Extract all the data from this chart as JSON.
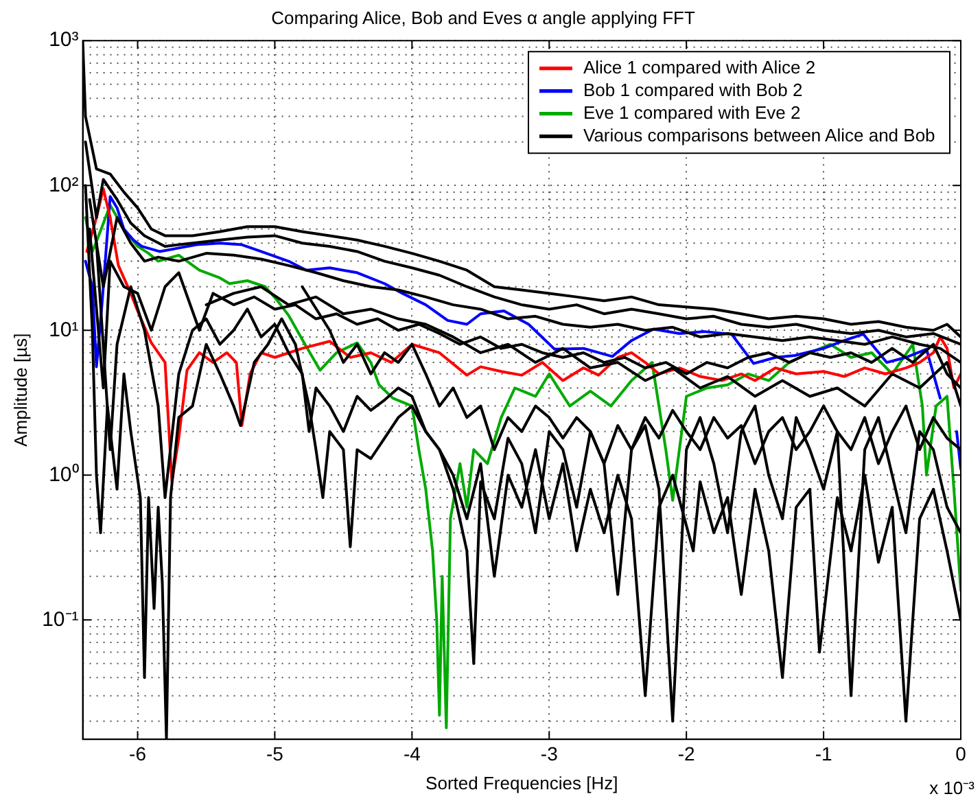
{
  "chart_data": {
    "type": "line",
    "title": "Comparing Alice, Bob and Eves α angle applying FFT",
    "xlabel": "Sorted Frequencies [Hz]",
    "ylabel": "Amplitude [µs]",
    "annotations": [
      "x 10⁻³"
    ],
    "xlim": [
      -6.4,
      0
    ],
    "xticks": [
      -6,
      -5,
      -4,
      -3,
      -2,
      -1,
      0
    ],
    "ylim": [
      0.015,
      1000
    ],
    "yticks": [
      {
        "value": 0.1,
        "label": "10⁻¹"
      },
      {
        "value": 1,
        "label": "10⁰"
      },
      {
        "value": 10,
        "label": "10¹"
      },
      {
        "value": 100,
        "label": "10²"
      },
      {
        "value": 1000,
        "label": "10³"
      }
    ],
    "log": true,
    "grid": true,
    "legend": "top right",
    "marker": "none",
    "line_style": "solid",
    "series": [
      {
        "color": "#000000",
        "x": [
          -6.38,
          -6.33,
          -6.3,
          -6.27,
          -6.22,
          -6.15,
          -6.1,
          -6.05,
          -5.98,
          -5.95,
          -5.92,
          -5.88,
          -5.85,
          -5.82,
          -5.79,
          -5.76,
          -5.7,
          -5.6,
          -5.5,
          -5.4,
          -5.3,
          -5.25,
          -5.15,
          -5.05,
          -4.95,
          -4.85,
          -4.75,
          -4.7,
          -4.65,
          -4.6,
          -4.5,
          -4.45,
          -4.4,
          -4.3,
          -4.2,
          -4.1,
          -4.0,
          -3.9,
          -3.8,
          -3.7,
          -3.6,
          -3.5,
          -3.4,
          -3.3,
          -3.2,
          -3.1,
          -3.0,
          -2.9,
          -2.8,
          -2.7,
          -2.6,
          -2.5,
          -2.4,
          -2.3,
          -2.2,
          -2.1,
          -1.95,
          -1.9,
          -1.8,
          -1.7,
          -1.6,
          -1.5,
          -1.4,
          -1.3,
          -1.2,
          -1.1,
          -1.03,
          -0.9,
          -0.8,
          -0.7,
          -0.6,
          -0.5,
          -0.4,
          -0.3,
          -0.2,
          -0.1,
          0
        ],
        "values": [
          100,
          10,
          1,
          0.4,
          3,
          0.8,
          5,
          2,
          0.7,
          0.04,
          0.7,
          0.12,
          0.6,
          0.18,
          0.015,
          0.7,
          2.5,
          3,
          8,
          5,
          3,
          2.2,
          6,
          8,
          12,
          8,
          3,
          1.5,
          0.7,
          2,
          1.5,
          0.32,
          1.5,
          1.3,
          1.8,
          2.5,
          3,
          2,
          1.5,
          1,
          0.5,
          1.2,
          0.2,
          1,
          0.6,
          1.5,
          0.5,
          1.2,
          0.3,
          0.8,
          0.4,
          1.0,
          0.5,
          0.03,
          0.6,
          1,
          0.3,
          0.9,
          0.4,
          0.7,
          0.15,
          0.8,
          0.3,
          0.04,
          0.6,
          0.8,
          0.06,
          0.7,
          0.3,
          1,
          0.25,
          0.6,
          0.02,
          0.5,
          0.8,
          0.3,
          0.1
        ]
      },
      {
        "color": "#000000",
        "x": [
          -6.3,
          -6.2,
          -6.15,
          -6.05,
          -5.95,
          -5.85,
          -5.8,
          -5.7,
          -5.6,
          -5.5,
          -5.4,
          -5.3,
          -5.2,
          -5.1,
          -5.0,
          -4.9,
          -4.8,
          -4.75,
          -4.7,
          -4.6,
          -4.5,
          -4.4,
          -4.3,
          -4.2,
          -4.1,
          -4.0,
          -3.9,
          -3.8,
          -3.7,
          -3.6,
          -3.55,
          -3.5,
          -3.4,
          -3.3,
          -3.2,
          -3.1,
          -3.0,
          -2.9,
          -2.8,
          -2.7,
          -2.6,
          -2.5,
          -2.4,
          -2.3,
          -2.2,
          -2.1,
          -2.0,
          -1.9,
          -1.8,
          -1.7,
          -1.6,
          -1.5,
          -1.4,
          -1.3,
          -1.2,
          -1.1,
          -1.0,
          -0.9,
          -0.8,
          -0.7,
          -0.6,
          -0.5,
          -0.4,
          -0.3,
          -0.2,
          -0.1,
          0
        ],
        "values": [
          40,
          1.5,
          8,
          20,
          10,
          3,
          0.7,
          5,
          10,
          12,
          8,
          10,
          14,
          9,
          11,
          7,
          5,
          2,
          4,
          3,
          2,
          3.5,
          2.8,
          3.3,
          4,
          3.5,
          2,
          1.5,
          0.8,
          0.3,
          0.05,
          0.9,
          0.5,
          1.8,
          1.2,
          0.4,
          2,
          1.5,
          0.6,
          2,
          1.2,
          0.15,
          1.5,
          2.2,
          0.8,
          0.02,
          1.5,
          2.5,
          1.2,
          0.4,
          2,
          3,
          1,
          0.5,
          2.5,
          1.5,
          0.8,
          2,
          0.03,
          1.5,
          2.5,
          1,
          0.4,
          2,
          1.5,
          0.6,
          0.4
        ]
      },
      {
        "color": "#000000",
        "x": [
          -4.8,
          -4.6,
          -4.5,
          -4.4,
          -4.3,
          -4.2,
          -4.1,
          -4.0,
          -3.9,
          -3.8,
          -3.7,
          -3.6,
          -3.5,
          -3.4,
          -3.3,
          -3.2,
          -3.1,
          -3.0,
          -2.9,
          -2.8,
          -2.7,
          -2.6,
          -2.5,
          -2.4,
          -2.3,
          -2.2,
          -2.1,
          -2.0,
          -1.9,
          -1.8,
          -1.7,
          -1.6,
          -1.5,
          -1.4,
          -1.3,
          -1.2,
          -1.1,
          -1.0,
          -0.9,
          -0.8,
          -0.7,
          -0.6,
          -0.5,
          -0.4,
          -0.3,
          -0.2,
          -0.1,
          0
        ],
        "values": [
          20,
          10,
          6,
          8,
          5,
          7,
          6,
          8,
          5,
          3,
          4,
          2.5,
          3,
          1.5,
          2.5,
          2,
          3,
          2.5,
          1.8,
          2.5,
          2,
          1.2,
          2.2,
          1.5,
          2.5,
          1.8,
          2.8,
          2,
          1.5,
          2.5,
          1.8,
          2.2,
          1.2,
          2,
          2.5,
          1.5,
          2,
          3,
          2,
          1.5,
          2.5,
          1.2,
          2,
          3,
          1.5,
          2.5,
          1.8,
          1.5
        ]
      },
      {
        "color": "#000000",
        "x": [
          -5.5,
          -5.3,
          -5.1,
          -4.9,
          -4.7,
          -4.5,
          -4.3,
          -4.1,
          -3.9,
          -3.7,
          -3.5,
          -3.3,
          -3.1,
          -2.9,
          -2.7,
          -2.5,
          -2.3,
          -2.1,
          -1.9,
          -1.7,
          -1.5,
          -1.3,
          -1.1,
          -0.9,
          -0.7,
          -0.5,
          -0.3,
          -0.1,
          0
        ],
        "values": [
          15,
          18,
          20,
          15,
          17,
          13,
          14,
          12,
          11,
          9,
          7,
          8,
          6,
          7.5,
          5.5,
          6,
          4.5,
          5.5,
          4,
          4.8,
          3.5,
          4.5,
          3.5,
          4,
          3,
          5,
          4,
          6,
          3
        ]
      },
      {
        "color": "#000000",
        "x": [
          -6.35,
          -6.25,
          -6.2,
          -6.1,
          -6.0,
          -5.9,
          -5.8,
          -5.7,
          -5.55,
          -5.45,
          -5.3,
          -5.15,
          -5.0,
          -4.85,
          -4.7,
          -4.55,
          -4.4,
          -4.25,
          -4.1,
          -3.95,
          -3.8,
          -3.65,
          -3.5,
          -3.35,
          -3.2,
          -3.05,
          -2.9,
          -2.75,
          -2.6,
          -2.45,
          -2.3,
          -2.15,
          -2.0,
          -1.85,
          -1.7,
          -1.55,
          -1.4,
          -1.25,
          -1.1,
          -0.95,
          -0.8,
          -0.65,
          -0.5,
          -0.35,
          -0.2,
          -0.1,
          0
        ],
        "values": [
          50,
          4,
          30,
          20,
          18,
          10,
          20,
          25,
          10,
          18,
          15,
          17,
          14,
          15,
          12,
          13,
          11,
          12,
          10,
          11,
          9.5,
          8,
          9,
          7.5,
          8,
          7,
          6.5,
          7,
          6,
          6.5,
          5.5,
          6,
          5,
          6,
          5.5,
          6.5,
          7,
          6,
          7,
          6.5,
          7,
          6,
          7.5,
          6,
          8,
          5,
          4
        ]
      },
      {
        "color": "#000000",
        "x": [
          -6.35,
          -6.25,
          -6.15,
          -6.05,
          -5.95,
          -5.85,
          -5.7,
          -5.5,
          -5.3,
          -5.1,
          -4.9,
          -4.7,
          -4.5,
          -4.3,
          -4.1,
          -3.9,
          -3.7,
          -3.5,
          -3.3,
          -3.1,
          -2.9,
          -2.7,
          -2.5,
          -2.3,
          -2.1,
          -1.9,
          -1.7,
          -1.5,
          -1.3,
          -1.1,
          -0.9,
          -0.7,
          -0.5,
          -0.3,
          -0.15,
          0
        ],
        "values": [
          80,
          20,
          60,
          40,
          30,
          32,
          30,
          34,
          33,
          31,
          28,
          25,
          22,
          20,
          19,
          17,
          15,
          14,
          12,
          12.5,
          11,
          10.5,
          11,
          10,
          10.5,
          9,
          9.5,
          9,
          8.5,
          9,
          8.5,
          8,
          9,
          8,
          7.5,
          6
        ]
      },
      {
        "color": "#000000",
        "x": [
          -6.38,
          -6.3,
          -6.25,
          -6.15,
          -6.05,
          -5.95,
          -5.8,
          -5.6,
          -5.4,
          -5.2,
          -5.0,
          -4.8,
          -4.6,
          -4.4,
          -4.2,
          -4.0,
          -3.8,
          -3.6,
          -3.4,
          -3.2,
          -3.0,
          -2.8,
          -2.6,
          -2.4,
          -2.2,
          -2.0,
          -1.8,
          -1.6,
          -1.4,
          -1.2,
          -1.0,
          -0.8,
          -0.6,
          -0.4,
          -0.2,
          0
        ],
        "values": [
          200,
          60,
          110,
          80,
          55,
          45,
          38,
          40,
          42,
          44,
          45,
          40,
          38,
          35,
          30,
          27,
          24,
          20,
          17,
          15,
          14,
          15,
          13,
          14,
          13,
          12,
          12.5,
          11,
          10.5,
          11,
          10,
          9.5,
          10,
          9,
          9.5,
          8
        ]
      },
      {
        "name": "Alice 1 compared with Alice 2",
        "color": "#ff0000",
        "x": [
          -6.37,
          -6.3,
          -6.25,
          -6.2,
          -6.14,
          -6.05,
          -6.0,
          -5.9,
          -5.8,
          -5.75,
          -5.7,
          -5.64,
          -5.55,
          -5.45,
          -5.35,
          -5.28,
          -5.24,
          -5.18,
          -5.1,
          -5.0,
          -4.8,
          -4.6,
          -4.45,
          -4.3,
          -4.15,
          -4.0,
          -3.8,
          -3.6,
          -3.5,
          -3.35,
          -3.2,
          -3.05,
          -2.9,
          -2.75,
          -2.64,
          -2.5,
          -2.4,
          -2.3,
          -2.2,
          -2.05,
          -1.9,
          -1.74,
          -1.6,
          -1.5,
          -1.35,
          -1.2,
          -1.0,
          -0.85,
          -0.7,
          -0.55,
          -0.4,
          -0.3,
          -0.2,
          -0.15,
          -0.1,
          -0.05,
          0
        ],
        "values": [
          35,
          60,
          95,
          60,
          28,
          18,
          13.6,
          8.2,
          6,
          0.9,
          1.8,
          5.3,
          7,
          6,
          7,
          6,
          2.2,
          5,
          7,
          6.5,
          7.5,
          8.4,
          6.5,
          7,
          6,
          8,
          7,
          4.9,
          5.6,
          5.2,
          4.9,
          6,
          4.5,
          5.5,
          4.9,
          6.5,
          7,
          6,
          5,
          5.5,
          4.8,
          4.5,
          5,
          4.5,
          5.5,
          5,
          5.2,
          4.8,
          5.5,
          5,
          5.5,
          6,
          7,
          9,
          7.5,
          4,
          5
        ]
      },
      {
        "name": "Bob 1 compared with Bob 2",
        "color": "#0000ff",
        "x": [
          -6.38,
          -6.33,
          -6.3,
          -6.26,
          -6.2,
          -6.15,
          -6.1,
          -6.03,
          -5.97,
          -5.84,
          -5.7,
          -5.57,
          -5.4,
          -5.24,
          -5.1,
          -4.9,
          -4.77,
          -4.6,
          -4.4,
          -4.2,
          -4.07,
          -3.9,
          -3.74,
          -3.6,
          -3.5,
          -3.33,
          -3.15,
          -2.96,
          -2.75,
          -2.54,
          -2.4,
          -2.24,
          -2.05,
          -1.87,
          -1.67,
          -1.51,
          -1.35,
          -1.21,
          -1.0,
          -0.85,
          -0.71,
          -0.54,
          -0.4,
          -0.25,
          -0.15,
          -0.08,
          -0.03,
          0
        ],
        "values": [
          30,
          20,
          5.6,
          15,
          84,
          70,
          50,
          42,
          38,
          35,
          37,
          39,
          40,
          39,
          35,
          30,
          26,
          27,
          25,
          21,
          18,
          15,
          11.7,
          11,
          13,
          13.6,
          11,
          7.4,
          7.5,
          6.6,
          8.5,
          10.2,
          9.5,
          9.8,
          9.4,
          5.9,
          6.5,
          6.7,
          7.5,
          8.5,
          9.4,
          6.0,
          6.5,
          7.4,
          3.4,
          null,
          2,
          1.1
        ]
      },
      {
        "name": "Eve 1 compared with Eve 2",
        "color": "#00aa00",
        "x": [
          -6.38,
          -6.33,
          -6.3,
          -6.2,
          -6.1,
          -6.0,
          -5.92,
          -5.85,
          -5.7,
          -5.55,
          -5.4,
          -5.33,
          -5.2,
          -5.07,
          -4.98,
          -4.9,
          -4.78,
          -4.67,
          -4.55,
          -4.4,
          -4.3,
          -4.24,
          -4.14,
          -4.0,
          -3.95,
          -3.9,
          -3.85,
          -3.82,
          -3.8,
          -3.78,
          -3.75,
          -3.72,
          -3.65,
          -3.6,
          -3.55,
          -3.45,
          -3.35,
          -3.25,
          -3.1,
          -3.0,
          -2.85,
          -2.7,
          -2.55,
          -2.4,
          -2.25,
          -2.15,
          -2.1,
          -2.0,
          -1.85,
          -1.7,
          -1.55,
          -1.4,
          -1.25,
          -1.1,
          -0.95,
          -0.8,
          -0.65,
          -0.5,
          -0.35,
          -0.28,
          -0.25,
          -0.18,
          -0.1,
          -0.05,
          0
        ],
        "values": [
          60,
          35,
          41,
          73,
          50,
          38,
          34,
          30,
          33,
          26,
          23,
          21,
          22,
          20,
          16,
          12.7,
          8,
          5.3,
          7,
          8.2,
          6,
          4.2,
          3.4,
          3,
          1.5,
          0.8,
          0.3,
          0.1,
          0.022,
          0.2,
          0.018,
          0.5,
          1.2,
          0.6,
          1.5,
          1.2,
          2.5,
          4,
          3.5,
          5,
          3,
          3.8,
          3,
          4.5,
          6,
          1.5,
          0.67,
          3.5,
          4,
          4.2,
          5,
          4.5,
          6,
          7,
          8,
          6.5,
          7,
          5,
          8,
          3,
          1,
          3,
          3.5,
          0.8,
          0.16
        ]
      },
      {
        "name": "Various comparisons between Alice and Bob",
        "color": "#000000",
        "x": [
          -6.4,
          -6.38,
          -6.3,
          -6.2,
          -6.1,
          -6.0,
          -5.9,
          -5.8,
          -5.6,
          -5.4,
          -5.2,
          -5.0,
          -4.8,
          -4.6,
          -4.4,
          -4.2,
          -4.0,
          -3.8,
          -3.6,
          -3.4,
          -3.2,
          -3.0,
          -2.8,
          -2.6,
          -2.4,
          -2.2,
          -2.0,
          -1.8,
          -1.6,
          -1.4,
          -1.2,
          -1.0,
          -0.8,
          -0.6,
          -0.4,
          -0.2,
          -0.1,
          0
        ],
        "values": [
          1000,
          300,
          130,
          120,
          90,
          70,
          50,
          45,
          45,
          48,
          52,
          52,
          48,
          45,
          42,
          38,
          34,
          30,
          26,
          20,
          19,
          18,
          17,
          16,
          17,
          15,
          14.5,
          14,
          13,
          12,
          12.5,
          12,
          11,
          11.5,
          10.5,
          10,
          11,
          9
        ]
      }
    ]
  }
}
